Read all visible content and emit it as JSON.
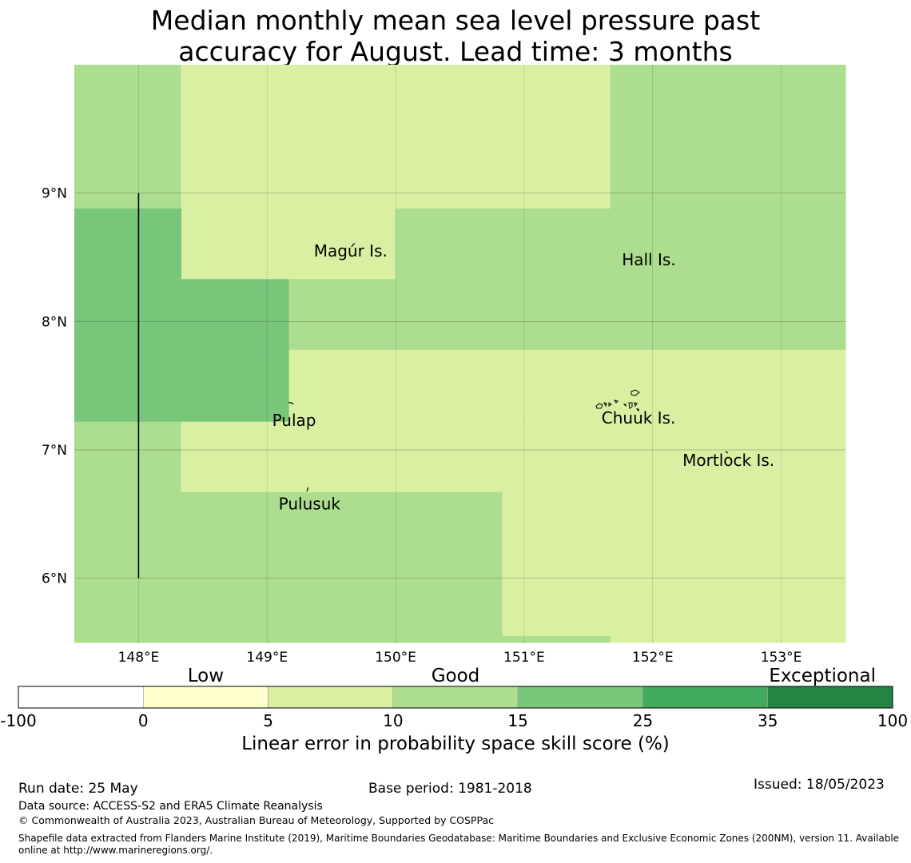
{
  "title_line1": "Median monthly mean sea level pressure past",
  "title_line2": "accuracy for August. Lead time: 3 months",
  "x_ticks": [
    "148°E",
    "149°E",
    "150°E",
    "151°E",
    "152°E",
    "153°E"
  ],
  "y_ticks": [
    "9°N",
    "8°N",
    "7°N",
    "6°N"
  ],
  "map_extent": {
    "lon_min": 147.5,
    "lon_max": 153.5,
    "lat_min": 5.5,
    "lat_max": 10.0
  },
  "cells": [
    {
      "lon0": 147.5,
      "lon1": 148.33,
      "lat0": 8.88,
      "lat1": 10.0,
      "category": "10-15"
    },
    {
      "lon0": 148.33,
      "lon1": 150.0,
      "lat0": 8.33,
      "lat1": 10.0,
      "category": "5-10"
    },
    {
      "lon0": 150.0,
      "lon1": 151.67,
      "lat0": 8.88,
      "lat1": 10.0,
      "category": "5-10"
    },
    {
      "lon0": 151.67,
      "lon1": 153.5,
      "lat0": 8.88,
      "lat1": 10.0,
      "category": "10-15"
    },
    {
      "lon0": 147.5,
      "lon1": 148.33,
      "lat0": 7.22,
      "lat1": 8.88,
      "category": "15-25"
    },
    {
      "lon0": 148.33,
      "lon1": 149.17,
      "lat0": 7.22,
      "lat1": 8.33,
      "category": "15-25"
    },
    {
      "lon0": 149.17,
      "lon1": 150.0,
      "lat0": 7.78,
      "lat1": 8.33,
      "category": "10-15"
    },
    {
      "lon0": 150.0,
      "lon1": 153.5,
      "lat0": 7.78,
      "lat1": 8.88,
      "category": "10-15"
    },
    {
      "lon0": 149.17,
      "lon1": 153.5,
      "lat0": 7.22,
      "lat1": 7.78,
      "category": "5-10"
    },
    {
      "lon0": 147.5,
      "lon1": 148.33,
      "lat0": 6.67,
      "lat1": 7.22,
      "category": "10-15"
    },
    {
      "lon0": 148.33,
      "lon1": 153.5,
      "lat0": 6.67,
      "lat1": 7.22,
      "category": "5-10"
    },
    {
      "lon0": 147.5,
      "lon1": 150.83,
      "lat0": 5.5,
      "lat1": 6.67,
      "category": "10-15"
    },
    {
      "lon0": 150.83,
      "lon1": 153.5,
      "lat0": 5.55,
      "lat1": 6.67,
      "category": "5-10"
    },
    {
      "lon0": 150.83,
      "lon1": 151.67,
      "lat0": 5.5,
      "lat1": 5.55,
      "category": "10-15"
    },
    {
      "lon0": 151.67,
      "lon1": 153.5,
      "lat0": 5.5,
      "lat1": 5.55,
      "category": "5-10"
    }
  ],
  "boundary_line": {
    "lon": 148.0,
    "lat0": 6.0,
    "lat1": 9.0
  },
  "places": [
    {
      "name": "Magur Is.",
      "lon": 149.65,
      "lat": 8.55
    },
    {
      "name": "Hall Is.",
      "lon": 151.97,
      "lat": 8.48
    },
    {
      "name": "Pulap",
      "lon": 149.21,
      "lat": 7.23
    },
    {
      "name": "Chuuk Is.",
      "lon": 151.89,
      "lat": 7.25
    },
    {
      "name": "Mortlock Is.",
      "lon": 152.59,
      "lat": 6.92
    },
    {
      "name": "Pulusuk",
      "lon": 149.33,
      "lat": 6.58
    }
  ],
  "colorbar": {
    "tick_labels": [
      "-100",
      "0",
      "5",
      "10",
      "15",
      "25",
      "35",
      "100"
    ],
    "segments": [
      {
        "range": "-100-0",
        "color": "#ffffff"
      },
      {
        "range": "0-5",
        "color": "#ffffcc"
      },
      {
        "range": "5-10",
        "color": "#d9f0a3"
      },
      {
        "range": "10-15",
        "color": "#addd8e"
      },
      {
        "range": "15-25",
        "color": "#78c679"
      },
      {
        "range": "25-35",
        "color": "#41ab5d"
      },
      {
        "range": "35-100",
        "color": "#238443"
      }
    ],
    "categories": [
      "Low",
      "Good",
      "Exceptional"
    ],
    "label": "Linear error in probability space skill score (%)"
  },
  "footer": {
    "run_date": "Run date: 25 May",
    "base_period": "Base period: 1981-2018",
    "issued": "Issued: 18/05/2023",
    "data_source": "Data source: ACCESS-S2 and ERA5 Climate Reanalysis",
    "copyright": "© Commonwealth of Australia 2023, Australian Bureau of Meteorology, Supported by COSPPac",
    "shapefile": "Shapefile data extracted from Flanders Marine Institute (2019), Maritime Boundaries Geodatabase: Maritime Boundaries and Exclusive Economic Zones (200NM), version 11. Available online at http://www.marineregions.org/."
  }
}
